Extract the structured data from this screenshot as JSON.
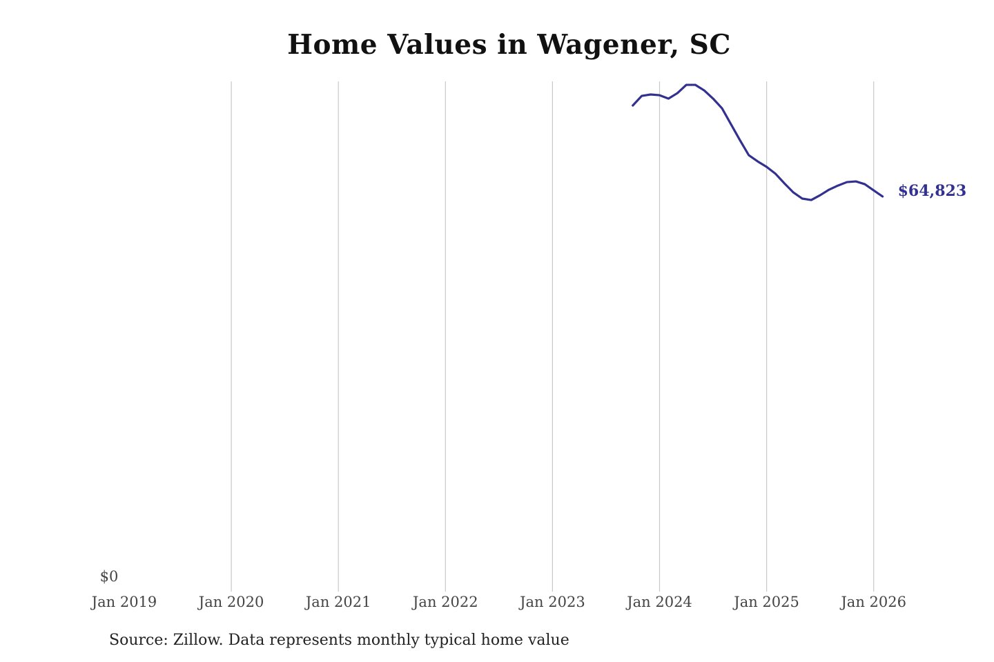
{
  "chart_data": {
    "type": "line",
    "title": "Home Values in Wagener, SC",
    "xlabel": "",
    "ylabel": "",
    "x_ticks": [
      "Jan 2019",
      "Jan 2020",
      "Jan 2021",
      "Jan 2022",
      "Jan 2023",
      "Jan 2024",
      "Jan 2025",
      "Jan 2026"
    ],
    "y_ticks": [
      "$0"
    ],
    "ylim": [
      0,
      83700
    ],
    "grid": "vertical",
    "line_color": "#33318f",
    "end_label": "$64,823",
    "series": [
      {
        "name": "Typical home value",
        "x": [
          "2023-10",
          "2023-11",
          "2023-12",
          "2024-01",
          "2024-02",
          "2024-03",
          "2024-04",
          "2024-05",
          "2024-06",
          "2024-07",
          "2024-08",
          "2024-09",
          "2024-10",
          "2024-11",
          "2024-12",
          "2025-01",
          "2025-02",
          "2025-03",
          "2025-04",
          "2025-05",
          "2025-06",
          "2025-07",
          "2025-08",
          "2025-09",
          "2025-10",
          "2025-11",
          "2025-12",
          "2026-01",
          "2026-02"
        ],
        "values": [
          79740,
          81320,
          81550,
          81430,
          80870,
          81770,
          83130,
          83130,
          82220,
          80870,
          79280,
          76680,
          74080,
          71590,
          70570,
          69670,
          68540,
          66960,
          65480,
          64470,
          64240,
          65030,
          65940,
          66610,
          67180,
          67290,
          66840,
          65820,
          64823
        ]
      }
    ]
  },
  "source": "Source: Zillow. Data represents monthly typical home value"
}
